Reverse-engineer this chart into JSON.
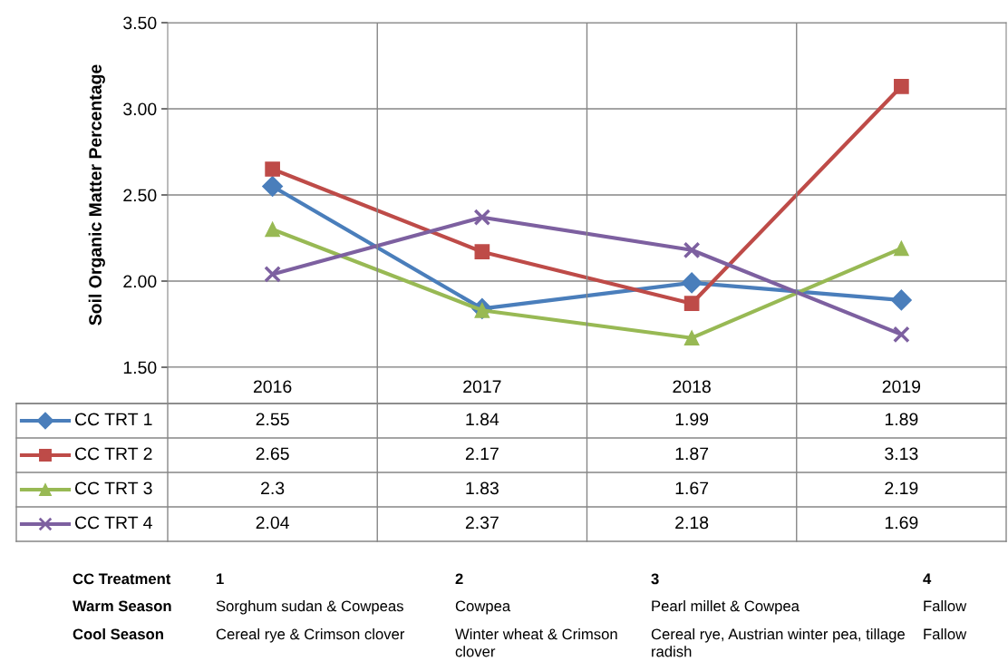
{
  "chart_data": {
    "type": "line",
    "ylabel": "Soil Organic Matter Percentage",
    "categories": [
      "2016",
      "2017",
      "2018",
      "2019"
    ],
    "series": [
      {
        "name": "CC TRT 1",
        "color": "#4a7ebb",
        "marker": "diamond",
        "values": [
          2.55,
          1.84,
          1.99,
          1.89
        ]
      },
      {
        "name": "CC TRT 2",
        "color": "#be4b48",
        "marker": "square",
        "values": [
          2.65,
          2.17,
          1.87,
          3.13
        ]
      },
      {
        "name": "CC TRT 3",
        "color": "#98b954",
        "marker": "triangle",
        "values": [
          2.3,
          1.83,
          1.67,
          2.19
        ]
      },
      {
        "name": "CC TRT 4",
        "color": "#7d60a0",
        "marker": "cross",
        "values": [
          2.04,
          2.37,
          2.18,
          1.69
        ]
      }
    ],
    "ylim": [
      1.5,
      3.5
    ],
    "yticks": [
      {
        "value": 1.5,
        "label": "1.50"
      },
      {
        "value": 2.0,
        "label": "2.00"
      },
      {
        "value": 2.5,
        "label": "2.50"
      },
      {
        "value": 3.0,
        "label": "3.00"
      },
      {
        "value": 3.5,
        "label": "3.50"
      }
    ],
    "grid": true,
    "legend": "bottom",
    "data_labels": true,
    "line_style": "solid",
    "annotations": [
      "CC Treatment",
      "1",
      "2",
      "3",
      "4",
      "Warm Season",
      "Sorghum sudan & Cowpeas",
      "Cowpea",
      "Pearl millet & Cowpea",
      "Fallow",
      "Cool Season",
      "Cereal rye & Crimson clover",
      "Winter wheat & Crimson clover",
      "Cereal rye, Austrian winter pea, tillage radish",
      "Fallow"
    ]
  }
}
